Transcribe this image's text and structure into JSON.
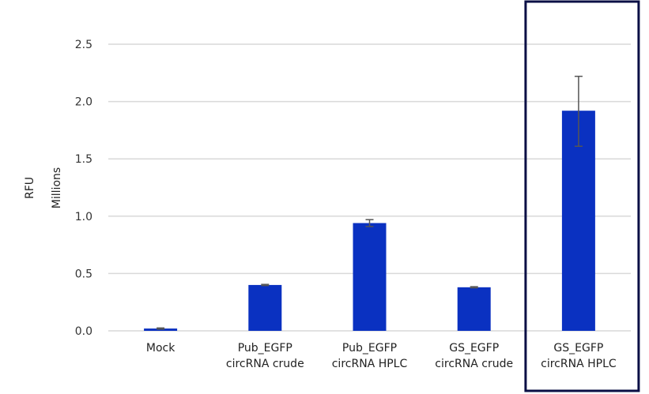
{
  "chart_data": {
    "type": "bar",
    "title": "",
    "xlabel": "",
    "ylabel": "RFU",
    "yunit_label": "Millions",
    "ylim": [
      0,
      2.5
    ],
    "yticks": [
      "0.0",
      "0.5",
      "1.0",
      "1.5",
      "2.0",
      "2.5"
    ],
    "grid": true,
    "categories": [
      [
        "Mock"
      ],
      [
        "Pub_EGFP",
        "circRNA crude"
      ],
      [
        "Pub_EGFP",
        "circRNA HPLC"
      ],
      [
        "GS_EGFP",
        "circRNA crude"
      ],
      [
        "GS_EGFP",
        "circRNA HPLC"
      ]
    ],
    "values": [
      0.02,
      0.4,
      0.94,
      0.38,
      1.92
    ],
    "error_low": [
      0.015,
      0.395,
      0.91,
      0.375,
      1.61
    ],
    "error_high": [
      0.025,
      0.405,
      0.97,
      0.385,
      2.22
    ],
    "highlighted_category": 4,
    "colors": {
      "bar": "#0a31c1",
      "grid": "#d9d9d9",
      "error": "#555555",
      "highlight_box": "#0a0f45"
    }
  }
}
